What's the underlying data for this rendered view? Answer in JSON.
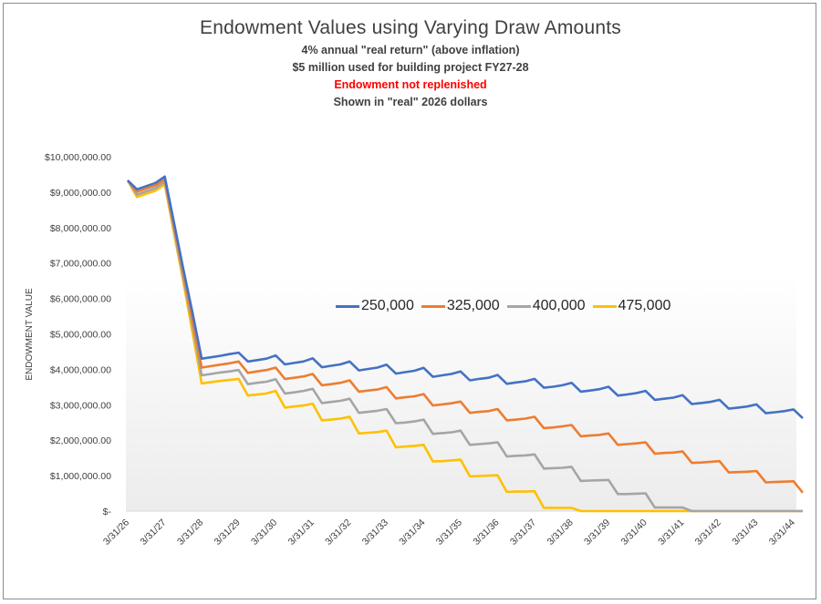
{
  "chart_data": {
    "type": "line",
    "title": "Endowment Values using Varying Draw Amounts",
    "subtitles": [
      {
        "text": "4% annual \"real return\" (above inflation)",
        "color": "#404040"
      },
      {
        "text": "$5 million used for building project FY27-28",
        "color": "#404040"
      },
      {
        "text": "Endowment not replenished",
        "color": "#ff0000"
      },
      {
        "text": "Shown in \"real\"  2026 dollars",
        "color": "#404040"
      }
    ],
    "xlabel": "",
    "ylabel": "ENDOWMENT VALUE",
    "ylim": [
      0,
      10000000
    ],
    "yticks": [
      0,
      1000000,
      2000000,
      3000000,
      4000000,
      5000000,
      6000000,
      7000000,
      8000000,
      9000000,
      10000000
    ],
    "ytick_labels": [
      "$-",
      "$1,000,000.00",
      "$2,000,000.00",
      "$3,000,000.00",
      "$4,000,000.00",
      "$5,000,000.00",
      "$6,000,000.00",
      "$7,000,000.00",
      "$8,000,000.00",
      "$9,000,000.00",
      "$10,000,000.00"
    ],
    "xtick_labels": [
      "3/31/26",
      "3/31/27",
      "3/31/28",
      "3/31/29",
      "3/31/30",
      "3/31/31",
      "3/31/32",
      "3/31/33",
      "3/31/34",
      "3/31/35",
      "3/31/36",
      "3/31/37",
      "3/31/38",
      "3/31/39",
      "3/31/40",
      "3/31/41",
      "3/31/42",
      "3/31/43",
      "3/31/44"
    ],
    "x_note": "quarterly points; x index in quarters from 3/31/26",
    "grid": false,
    "legend_position": "center",
    "series_units": "millions of dollars",
    "series": [
      {
        "name": "250,000",
        "color": "#4472c4",
        "values": [
          9.33,
          9.08,
          9.17,
          9.26,
          9.44,
          8.15,
          6.85,
          5.6,
          4.3,
          4.34,
          4.38,
          4.43,
          4.47,
          4.22,
          4.26,
          4.3,
          4.39,
          4.14,
          4.18,
          4.22,
          4.31,
          4.06,
          4.1,
          4.14,
          4.22,
          3.97,
          4.01,
          4.05,
          4.13,
          3.88,
          3.92,
          3.96,
          4.04,
          3.79,
          3.83,
          3.87,
          3.94,
          3.69,
          3.73,
          3.76,
          3.84,
          3.59,
          3.63,
          3.66,
          3.73,
          3.48,
          3.51,
          3.55,
          3.62,
          3.37,
          3.4,
          3.44,
          3.51,
          3.26,
          3.29,
          3.33,
          3.39,
          3.14,
          3.17,
          3.2,
          3.27,
          3.02,
          3.05,
          3.08,
          3.14,
          2.89,
          2.92,
          2.95,
          3.01,
          2.76,
          2.79,
          2.82,
          2.87,
          2.62
        ]
      },
      {
        "name": "325,000",
        "color": "#ed7d31",
        "values": [
          9.33,
          9.01,
          9.1,
          9.19,
          9.37,
          8.05,
          6.75,
          5.4,
          4.05,
          4.09,
          4.13,
          4.17,
          4.22,
          3.9,
          3.94,
          3.98,
          4.05,
          3.73,
          3.76,
          3.8,
          3.87,
          3.55,
          3.58,
          3.62,
          3.69,
          3.37,
          3.4,
          3.43,
          3.5,
          3.18,
          3.21,
          3.24,
          3.3,
          2.98,
          3.01,
          3.04,
          3.09,
          2.77,
          2.8,
          2.82,
          2.88,
          2.56,
          2.58,
          2.61,
          2.66,
          2.34,
          2.36,
          2.39,
          2.43,
          2.11,
          2.13,
          2.15,
          2.19,
          1.87,
          1.89,
          1.91,
          1.94,
          1.62,
          1.64,
          1.65,
          1.68,
          1.36,
          1.37,
          1.39,
          1.41,
          1.09,
          1.1,
          1.11,
          1.13,
          0.81,
          0.82,
          0.83,
          0.84,
          0.52
        ]
      },
      {
        "name": "400,000",
        "color": "#a5a5a5",
        "values": [
          9.33,
          8.93,
          9.02,
          9.11,
          9.29,
          7.95,
          6.6,
          5.25,
          3.83,
          3.87,
          3.91,
          3.94,
          3.98,
          3.58,
          3.62,
          3.65,
          3.72,
          3.32,
          3.35,
          3.39,
          3.45,
          3.05,
          3.08,
          3.11,
          3.17,
          2.77,
          2.8,
          2.83,
          2.88,
          2.48,
          2.5,
          2.53,
          2.58,
          2.18,
          2.2,
          2.22,
          2.27,
          1.87,
          1.89,
          1.91,
          1.94,
          1.54,
          1.56,
          1.57,
          1.6,
          1.2,
          1.21,
          1.22,
          1.25,
          0.85,
          0.86,
          0.87,
          0.88,
          0.48,
          0.48,
          0.49,
          0.5,
          0.1,
          0.1,
          0.1,
          0.1,
          0,
          0,
          0,
          0,
          0,
          0,
          0,
          0,
          0,
          0,
          0,
          0,
          0
        ]
      },
      {
        "name": "475,000",
        "color": "#ffc000",
        "values": [
          9.33,
          8.86,
          8.95,
          9.04,
          9.22,
          7.85,
          6.5,
          5.05,
          3.6,
          3.64,
          3.67,
          3.7,
          3.73,
          3.26,
          3.29,
          3.32,
          3.39,
          2.92,
          2.95,
          2.98,
          3.03,
          2.56,
          2.58,
          2.61,
          2.66,
          2.19,
          2.21,
          2.23,
          2.27,
          1.8,
          1.82,
          1.84,
          1.87,
          1.4,
          1.41,
          1.43,
          1.45,
          0.98,
          0.99,
          1.0,
          1.01,
          0.54,
          0.55,
          0.55,
          0.56,
          0.09,
          0.09,
          0.09,
          0.09,
          0,
          0,
          0,
          0,
          0,
          0,
          0,
          0,
          0,
          0,
          0,
          0,
          0,
          0,
          0,
          0,
          0,
          0,
          0,
          0,
          0,
          0,
          0,
          0,
          0
        ]
      }
    ]
  }
}
